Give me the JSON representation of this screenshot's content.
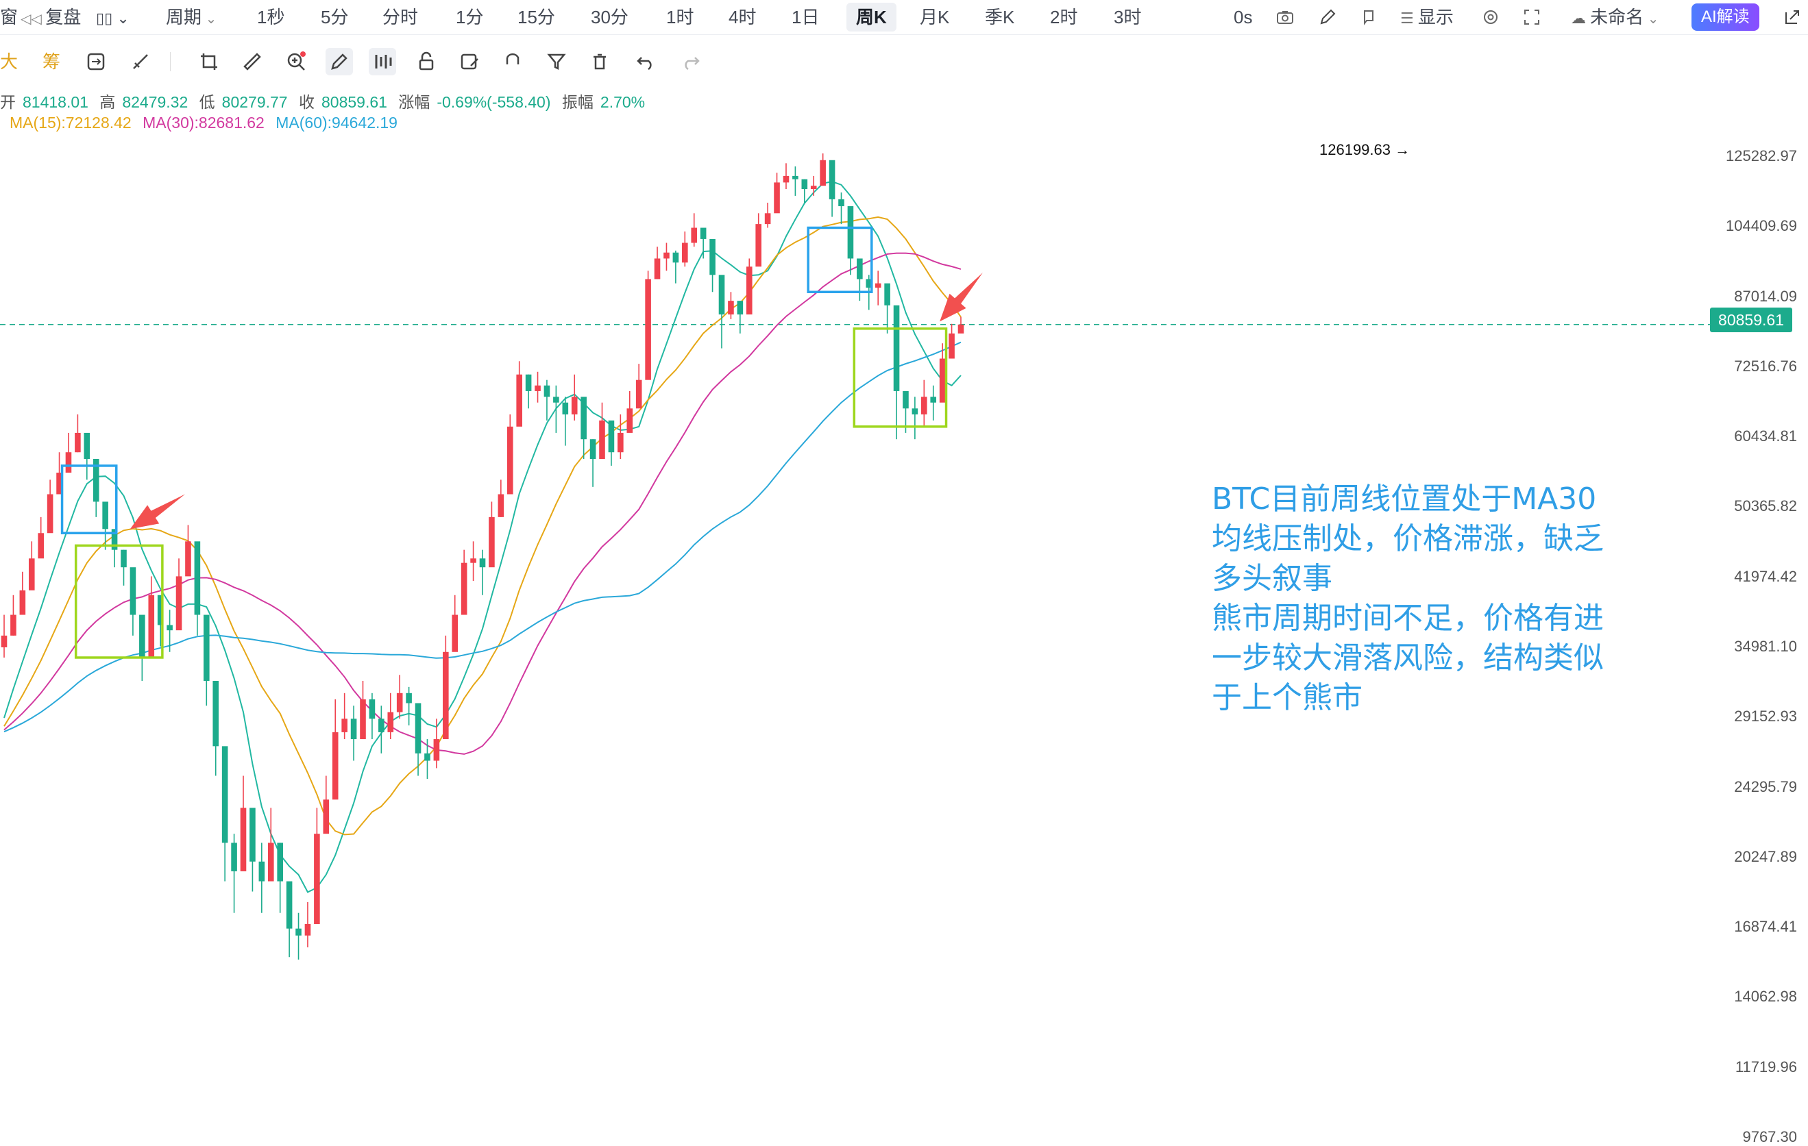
{
  "toolbar": {
    "left_label": "窗",
    "replay": "复盘",
    "period": "周期",
    "intervals": [
      "1秒",
      "5分",
      "分时",
      "1分",
      "15分",
      "30分",
      "1时",
      "4时",
      "1日",
      "周K",
      "月K",
      "季K",
      "2时",
      "3时"
    ],
    "active_interval": "周K",
    "time_zero": "0s",
    "display": "显示",
    "layout_name": "未命名",
    "ai_button": "AI解读"
  },
  "drawtools": {
    "big": "大",
    "chips": "筹"
  },
  "ohlc": {
    "open_label": "开",
    "open": "81418.01",
    "high_label": "高",
    "high": "82479.32",
    "low_label": "低",
    "low": "80279.77",
    "close_label": "收",
    "close": "80859.61",
    "change_label": "涨幅",
    "change": "-0.69%(-558.40)",
    "amp_label": "振幅",
    "amp": "2.70%"
  },
  "ma_legend": {
    "ma15": "MA(15):72128.42",
    "ma30": "MA(30):82681.62",
    "ma60": "MA(60):94642.19"
  },
  "colors": {
    "up": "#f0424e",
    "down": "#1cab8c",
    "ma15": "#e6a716",
    "ma30": "#d2399f",
    "ma60": "#2aa8d9",
    "ma7": "#22b8a2",
    "box_blue": "#29a3ec",
    "box_green": "#9ed61d",
    "arrow": "#f2504f",
    "annot": "#2f9ee6"
  },
  "annotation": "BTC目前周线位置处于MA30\n均线压制处，价格滞涨，缺乏\n多头叙事\n熊市周期时间不足，价格有进\n一步较大滑落风险，结构类似\n于上个熊市",
  "last_price": "80859.61",
  "chart_data": {
    "type": "candlestick",
    "timeframe": "weekly",
    "y_scale": "log",
    "y_ticks": [
      "125282.97",
      "104409.69",
      "87014.09",
      "72516.76",
      "60434.81",
      "50365.82",
      "41974.42",
      "34981.10",
      "29152.93",
      "24295.79",
      "20247.89",
      "16874.41",
      "14062.98",
      "11719.96",
      "9767.30"
    ],
    "y_tick_values": [
      125282.97,
      104409.69,
      87014.09,
      72516.76,
      60434.81,
      50365.82,
      41974.42,
      34981.1,
      29152.93,
      24295.79,
      20247.89,
      16874.41,
      14062.98,
      11719.96,
      9767.3
    ],
    "high_marker": "126199.63",
    "weekly_close_path": [
      36000,
      38000,
      40500,
      44000,
      47000,
      52000,
      55000,
      58000,
      61000,
      57000,
      51000,
      47500,
      45000,
      43000,
      38000,
      34000,
      40000,
      37000,
      36500,
      42000,
      46000,
      38000,
      32000,
      27000,
      21000,
      19500,
      23000,
      20000,
      19000,
      21000,
      19000,
      16800,
      16500,
      17000,
      21500,
      23500,
      28000,
      29000,
      27500,
      30500,
      29000,
      28000,
      29500,
      31000,
      30200,
      26500,
      26000,
      27500,
      34500,
      38000,
      43500,
      44000,
      43000,
      49000,
      52000,
      62000,
      71000,
      68000,
      69000,
      67000,
      66000,
      64000,
      67000,
      60000,
      57000,
      63000,
      58000,
      61000,
      65000,
      70000,
      91000,
      96000,
      97500,
      95000,
      100000,
      104000,
      101000,
      92000,
      83000,
      86000,
      83000,
      94000,
      105000,
      108000,
      117000,
      119000,
      118000,
      115000,
      116000,
      124000,
      112000,
      110000,
      96000,
      91000,
      89000,
      90000,
      85000,
      68000,
      65000,
      64000,
      67000,
      66000,
      74000,
      79000,
      80859.61
    ],
    "weekly_high_path": [
      38000,
      40000,
      42500,
      46000,
      49000,
      54000,
      58000,
      61000,
      64000,
      59000,
      53000,
      49000,
      47000,
      45000,
      40000,
      36000,
      42000,
      39000,
      38500,
      44000,
      48000,
      40000,
      34000,
      29000,
      23000,
      21500,
      25000,
      22000,
      21000,
      23000,
      21000,
      18500,
      17500,
      18000,
      23000,
      25000,
      30500,
      31000,
      30000,
      32000,
      31000,
      30000,
      31000,
      32500,
      31500,
      28000,
      27500,
      29000,
      36000,
      40000,
      45000,
      46000,
      45000,
      51000,
      54000,
      64000,
      73500,
      71000,
      71500,
      70000,
      69000,
      67000,
      71000,
      63000,
      60000,
      66000,
      61000,
      64000,
      68000,
      73000,
      93000,
      99000,
      100000,
      98000,
      103000,
      108000,
      104000,
      95000,
      86000,
      88000,
      86000,
      96000,
      108000,
      111000,
      120000,
      123000,
      122000,
      118000,
      119000,
      126199.63,
      116000,
      114000,
      99000,
      94000,
      92000,
      93000,
      88000,
      71000,
      68000,
      67000,
      70000,
      69000,
      77000,
      81000,
      82479.32
    ],
    "weekly_low_path": [
      34000,
      36000,
      38500,
      42000,
      45000,
      50000,
      53000,
      56000,
      58000,
      54000,
      49000,
      45000,
      43000,
      41000,
      36000,
      32000,
      37000,
      35000,
      34500,
      40000,
      43000,
      36000,
      30000,
      25000,
      19000,
      17500,
      21000,
      18500,
      17500,
      19500,
      17500,
      15600,
      15500,
      16000,
      20000,
      22000,
      26000,
      27500,
      26000,
      28500,
      27500,
      26500,
      27500,
      29000,
      28500,
      25000,
      24800,
      25500,
      32000,
      36000,
      40000,
      41500,
      40000,
      46000,
      49000,
      58000,
      67000,
      65000,
      66000,
      63000,
      61000,
      59000,
      63000,
      57000,
      53000,
      59000,
      56000,
      57000,
      62000,
      66000,
      86000,
      91000,
      93000,
      90000,
      94000,
      99000,
      96000,
      88000,
      76000,
      82000,
      79000,
      90000,
      100000,
      104000,
      112000,
      115000,
      113000,
      111000,
      113000,
      120000,
      107000,
      105000,
      92000,
      86000,
      84000,
      85000,
      79000,
      60000,
      61000,
      60000,
      62000,
      63000,
      70000,
      75000,
      80279.77
    ],
    "ma_series": [
      {
        "name": "MA(15)",
        "last": 72128.42
      },
      {
        "name": "MA(30)",
        "last": 82681.62
      },
      {
        "name": "MA(60)",
        "last": 94642.19
      }
    ]
  }
}
